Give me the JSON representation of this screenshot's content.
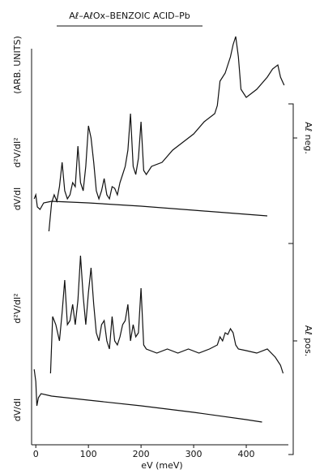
{
  "chart_data": {
    "type": "line",
    "title": "Aℓ–AℓOx–BENZOIC ACID–Pb",
    "xlabel": "eV (meV)",
    "xlim": [
      -8,
      480
    ],
    "xticks": [
      0,
      100,
      200,
      300,
      400
    ],
    "panels": [
      {
        "label": "Aℓ neg.",
        "ylabel": "d²V/dI²",
        "ylabel_unit": "(ARB. UNITS)",
        "ylabel_2": "dV/dI",
        "ylim": [
          0,
          260
        ],
        "series": [
          {
            "color": "#111111",
            "x": [
              25,
              30,
              35,
              40,
              45,
              50,
              55,
              60,
              65,
              70,
              75,
              80,
              85,
              90,
              95,
              100,
              105,
              110,
              115,
              120,
              125,
              130,
              135,
              140,
              145,
              150,
              155,
              160,
              165,
              170,
              175,
              180,
              185,
              190,
              195,
              200,
              205,
              210,
              220,
              240,
              260,
              280,
              300,
              320,
              340,
              345,
              350,
              360,
              370,
              375,
              380,
              385,
              390,
              400,
              410,
              420,
              440,
              450,
              460,
              465,
              472
            ],
            "values": [
              15,
              50,
              60,
              52,
              70,
              100,
              65,
              55,
              60,
              75,
              70,
              120,
              75,
              65,
              95,
              145,
              130,
              100,
              65,
              55,
              65,
              80,
              60,
              55,
              70,
              68,
              60,
              75,
              85,
              95,
              115,
              160,
              95,
              85,
              105,
              150,
              90,
              85,
              95,
              100,
              115,
              125,
              135,
              150,
              160,
              170,
              200,
              210,
              230,
              245,
              255,
              230,
              190,
              180,
              185,
              190,
              205,
              215,
              220,
              205,
              195
            ]
          },
          {
            "color": "#111111",
            "x": [
              -3,
              0,
              3,
              8,
              15,
              30,
              100,
              200,
              300,
              400,
              440
            ],
            "values": [
              55,
              60,
              45,
              42,
              50,
              52,
              50,
              46,
              41,
              36,
              34
            ]
          }
        ]
      },
      {
        "label": "Aℓ pos.",
        "ylabel": "d²V/dI²",
        "ylabel_2": "dV/dI",
        "ylim": [
          0,
          240
        ],
        "series": [
          {
            "color": "#111111",
            "x": [
              28,
              32,
              38,
              45,
              50,
              55,
              60,
              65,
              70,
              75,
              80,
              85,
              90,
              95,
              100,
              105,
              110,
              115,
              120,
              125,
              130,
              135,
              140,
              145,
              150,
              155,
              160,
              165,
              170,
              175,
              180,
              185,
              190,
              195,
              200,
              205,
              210,
              230,
              250,
              270,
              290,
              310,
              330,
              345,
              350,
              355,
              360,
              365,
              370,
              375,
              380,
              385,
              400,
              420,
              440,
              455,
              465,
              470
            ],
            "values": [
              80,
              150,
              140,
              120,
              155,
              195,
              140,
              145,
              165,
              140,
              170,
              225,
              175,
              140,
              180,
              210,
              165,
              130,
              120,
              140,
              145,
              120,
              110,
              150,
              120,
              115,
              125,
              140,
              145,
              165,
              120,
              140,
              125,
              130,
              185,
              115,
              110,
              105,
              110,
              105,
              110,
              105,
              110,
              115,
              125,
              120,
              130,
              128,
              135,
              130,
              115,
              110,
              108,
              105,
              110,
              100,
              90,
              80
            ]
          },
          {
            "color": "#111111",
            "x": [
              -3,
              0,
              2,
              5,
              10,
              30,
              100,
              200,
              300,
              400,
              430
            ],
            "values": [
              85,
              70,
              40,
              50,
              55,
              52,
              47,
              40,
              32,
              23,
              20
            ]
          }
        ]
      }
    ]
  }
}
